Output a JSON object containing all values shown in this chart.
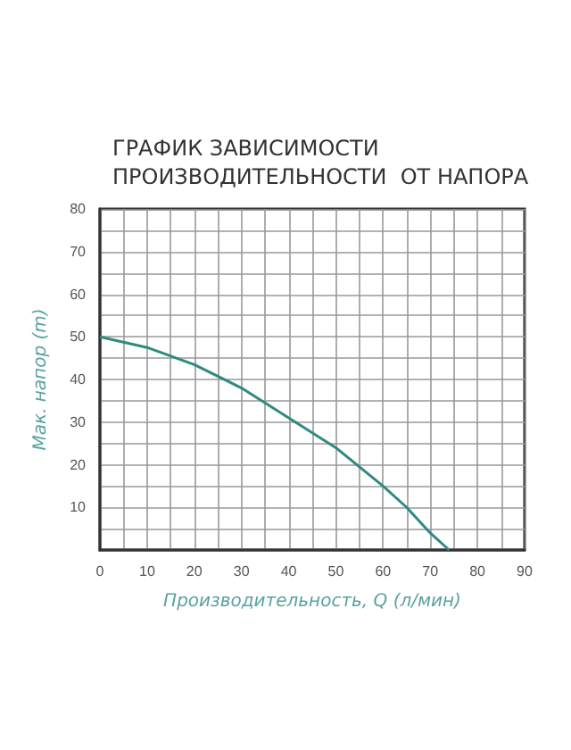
{
  "chart_data": {
    "type": "line",
    "title": "ГРАФИК ЗАВИСИМОСТИ\nПРОИЗВОДИТЕЛЬНОСТИ  ОТ НАПОРА",
    "xlabel": "Производительность, Q (л/мин)",
    "ylabel": "Мак. напор (m)",
    "x": [
      0,
      10,
      20,
      30,
      40,
      50,
      60,
      65,
      70,
      74
    ],
    "series": [
      {
        "color": "#2f8a80",
        "values": [
          50,
          47.5,
          43.5,
          38,
          31,
          24,
          15,
          10,
          4,
          0
        ]
      }
    ],
    "xlim": [
      0,
      90
    ],
    "ylim": [
      0,
      80
    ],
    "xticks": [
      0,
      {
        "value": 5,
        "label": null
      },
      10,
      {
        "value": 15,
        "label": null
      },
      20,
      {
        "value": 25,
        "label": null
      },
      30,
      {
        "value": 35,
        "label": null
      },
      40,
      {
        "value": 45,
        "label": null
      },
      50,
      {
        "value": 55,
        "label": null
      },
      60,
      {
        "value": 65,
        "label": null
      },
      70,
      {
        "value": 75,
        "label": null
      },
      80,
      {
        "value": 85,
        "label": null
      },
      90
    ],
    "yticks": [
      {
        "value": 0,
        "label": null
      },
      {
        "value": 5,
        "label": null
      },
      10,
      {
        "value": 15,
        "label": null
      },
      20,
      {
        "value": 25,
        "label": null
      },
      30,
      {
        "value": 35,
        "label": null
      },
      40,
      {
        "value": 45,
        "label": null
      },
      50,
      {
        "value": 55,
        "label": null
      },
      60,
      {
        "value": 65,
        "label": null
      },
      70,
      {
        "value": 75,
        "label": null
      },
      80
    ],
    "grid": true,
    "marker": "none",
    "line_style": "solid"
  }
}
